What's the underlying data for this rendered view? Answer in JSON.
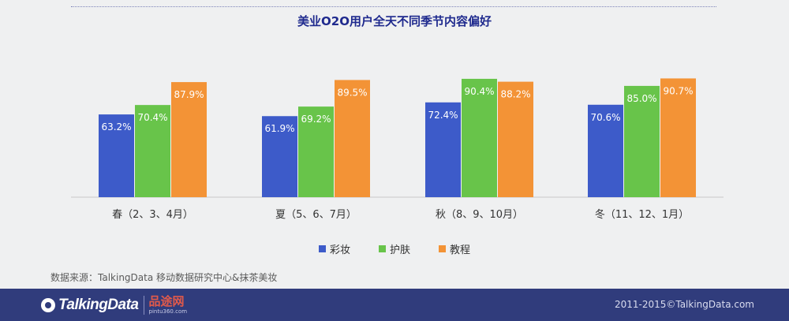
{
  "chart_data": {
    "type": "bar",
    "title": "美业O2O用户全天不同季节内容偏好",
    "categories": [
      "春（2、3、4月）",
      "夏（5、6、7月）",
      "秋（8、9、10月）",
      "冬（11、12、1月）"
    ],
    "series": [
      {
        "name": "彩妆",
        "color": "#3d5bc9",
        "values": [
          63.2,
          61.9,
          72.4,
          70.6
        ]
      },
      {
        "name": "护肤",
        "color": "#68c44a",
        "values": [
          70.4,
          69.2,
          90.4,
          85.0
        ]
      },
      {
        "name": "教程",
        "color": "#f39336",
        "values": [
          87.9,
          89.5,
          88.2,
          90.7
        ]
      }
    ],
    "value_suffix": "%",
    "ylim": [
      0,
      100
    ],
    "grid": false,
    "legend_position": "bottom"
  },
  "source_text": "数据来源：TalkingData 移动数据研究中心&抹茶美妆",
  "footer": {
    "brand": "TalkingData",
    "partner_name": "品途网",
    "partner_url": "pintu360.com",
    "copyright": "2011-2015©TalkingData.com"
  }
}
